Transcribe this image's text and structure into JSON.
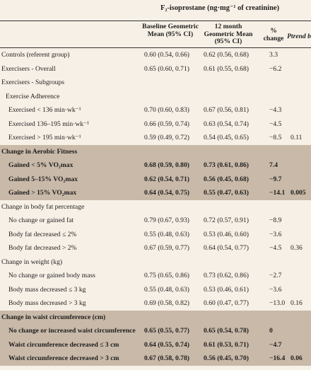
{
  "header": {
    "title": "F₂-isoprostane (ng·mg⁻¹ of creatinine)",
    "col_baseline": "Baseline Geometric Mean (95% CI)",
    "col_12month": "12 month Geometric Mean (95% CI)",
    "col_change": "% change",
    "col_ptrend": "Ptrend b"
  },
  "rows": [
    {
      "label": "Controls (referent group)",
      "baseline": "0.60 (0.54, 0.66)",
      "m12": "0.62 (0.56, 0.68)",
      "change": "3.3",
      "ptrend": ""
    },
    {
      "label": "Exercisers - Overall",
      "baseline": "0.65 (0.60, 0.71)",
      "m12": "0.61 (0.55, 0.68)",
      "change": "−6.2",
      "ptrend": ""
    },
    {
      "label": "Exercisers - Subgroups",
      "baseline": "",
      "m12": "",
      "change": "",
      "ptrend": ""
    },
    {
      "label": "Exercise Adherence",
      "baseline": "",
      "m12": "",
      "change": "",
      "ptrend": ""
    },
    {
      "label": "Exercised < 136 min·wk⁻¹",
      "baseline": "0.70 (0.60, 0.83)",
      "m12": "0.67 (0.56, 0.81)",
      "change": "−4.3",
      "ptrend": ""
    },
    {
      "label": "Exercised 136–195 min·wk⁻¹",
      "baseline": "0.66 (0.59, 0.74)",
      "m12": "0.63 (0.54, 0.74)",
      "change": "−4.5",
      "ptrend": ""
    },
    {
      "label": "Exercised > 195 min·wk⁻¹",
      "baseline": "0.59 (0.49, 0.72)",
      "m12": "0.54 (0.45, 0.65)",
      "change": "−8.5",
      "ptrend": "0.11"
    },
    {
      "label": "Change in Aerobic Fitness",
      "baseline": "",
      "m12": "",
      "change": "",
      "ptrend": ""
    },
    {
      "label": "Gained < 5% VO₂max",
      "baseline": "0.68 (0.59, 0.80)",
      "m12": "0.73 (0.61, 0.86)",
      "change": "7.4",
      "ptrend": ""
    },
    {
      "label": "Gained 5–15% VO₂max",
      "baseline": "0.62 (0.54, 0.71)",
      "m12": "0.56 (0.45, 0.68)",
      "change": "−9.7",
      "ptrend": ""
    },
    {
      "label": "Gained > 15% VO₂max",
      "baseline": "0.64 (0.54, 0.75)",
      "m12": "0.55 (0.47, 0.63)",
      "change": "−14.1",
      "ptrend": "0.005"
    },
    {
      "label": "Change in body fat percentage",
      "baseline": "",
      "m12": "",
      "change": "",
      "ptrend": ""
    },
    {
      "label": "No change or gained fat",
      "baseline": "0.79 (0.67, 0.93)",
      "m12": "0.72 (0.57, 0.91)",
      "change": "−8.9",
      "ptrend": ""
    },
    {
      "label": "Body fat decreased ≤ 2%",
      "baseline": "0.55 (0.48, 0.63)",
      "m12": "0.53 (0.46, 0.60)",
      "change": "−3.6",
      "ptrend": ""
    },
    {
      "label": "Body fat decreased > 2%",
      "baseline": "0.67 (0.59, 0.77)",
      "m12": "0.64 (0.54, 0.77)",
      "change": "−4.5",
      "ptrend": "0.36"
    },
    {
      "label": "Change in weight (kg)",
      "baseline": "",
      "m12": "",
      "change": "",
      "ptrend": ""
    },
    {
      "label": "No change or gained body mass",
      "baseline": "0.75 (0.65, 0.86)",
      "m12": "0.73 (0.62, 0.86)",
      "change": "−2.7",
      "ptrend": ""
    },
    {
      "label": "Body mass decreased ≤ 3 kg",
      "baseline": "0.55 (0.48, 0.63)",
      "m12": "0.53 (0.46, 0.61)",
      "change": "−3.6",
      "ptrend": ""
    },
    {
      "label": "Body mass decreased > 3 kg",
      "baseline": "0.69 (0.58, 0.82)",
      "m12": "0.60 (0.47, 0.77)",
      "change": "−13.0",
      "ptrend": "0.16"
    },
    {
      "label": "Change in waist circumference (cm)",
      "baseline": "",
      "m12": "",
      "change": "",
      "ptrend": ""
    },
    {
      "label": "No change or increased waist circumference",
      "baseline": "0.65 (0.55, 0.77)",
      "m12": "0.65 (0.54, 0.78)",
      "change": "0",
      "ptrend": ""
    },
    {
      "label": "Waist circumference decreased ≤ 3 cm",
      "baseline": "0.64 (0.55, 0.74)",
      "m12": "0.61 (0.53, 0.71)",
      "change": "−4.7",
      "ptrend": ""
    },
    {
      "label": "Waist circumference decreased > 3 cm",
      "baseline": "0.67 (0.58, 0.78)",
      "m12": "0.56 (0.45, 0.70)",
      "change": "−16.4",
      "ptrend": "0.06"
    }
  ],
  "colors": {
    "background": "#f7f0e6",
    "shaded_row": "#c9b9a8"
  }
}
